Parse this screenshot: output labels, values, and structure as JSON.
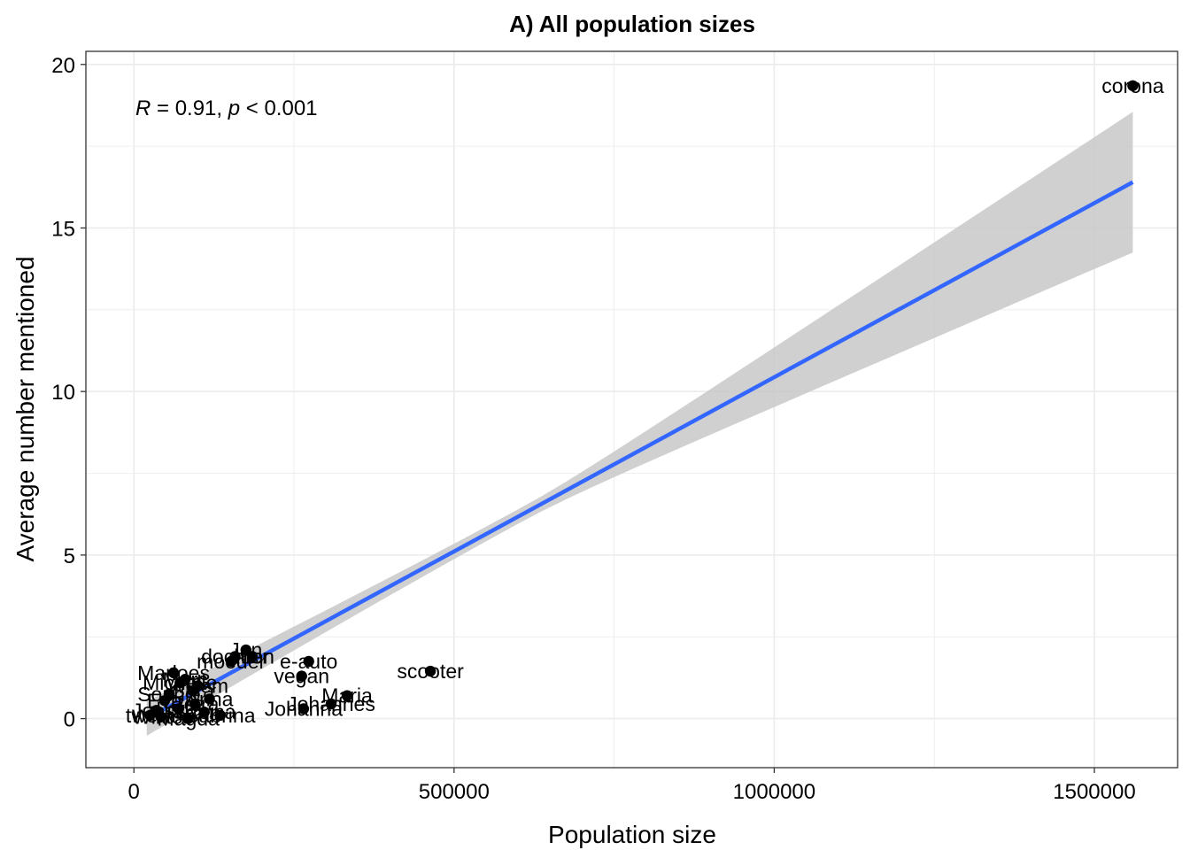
{
  "chart_data": {
    "type": "scatter",
    "title": "A) All population sizes",
    "xlabel": "Population size",
    "ylabel": "Average number mentioned",
    "xlim": [
      -75000,
      1630000
    ],
    "ylim": [
      -1.5,
      20.4
    ],
    "xticks": [
      0,
      500000,
      1000000,
      1500000
    ],
    "xtick_labels": [
      "0",
      "500000",
      "1000000",
      "1500000"
    ],
    "yticks": [
      0,
      5,
      10,
      15,
      20
    ],
    "ytick_labels": [
      "0",
      "5",
      "10",
      "15",
      "20"
    ],
    "grid": true,
    "annotation": {
      "r_symbol": "R",
      "r_text": " = 0.91, ",
      "p_symbol": "p",
      "p_text": " < 0.001"
    },
    "fit": {
      "x": [
        20000,
        1560000
      ],
      "y": [
        0.0,
        16.4
      ],
      "ci_lower": [
        -0.55,
        14.25
      ],
      "ci_upper": [
        0.5,
        18.55
      ],
      "color": "#3366FF",
      "band_color": "#c8c8c8"
    },
    "points": [
      {
        "x": 1560000,
        "y": 19.35,
        "label": "corona"
      },
      {
        "x": 463000,
        "y": 1.45,
        "label": "scooter"
      },
      {
        "x": 333000,
        "y": 0.7,
        "label": "Maria"
      },
      {
        "x": 308000,
        "y": 0.45,
        "label": "Johannes"
      },
      {
        "x": 265000,
        "y": 0.3,
        "label": "Johanna"
      },
      {
        "x": 262000,
        "y": 1.3,
        "label": "vegan"
      },
      {
        "x": 273000,
        "y": 1.75,
        "label": "e-auto"
      },
      {
        "x": 175000,
        "y": 2.1,
        "label": "Jan"
      },
      {
        "x": 158000,
        "y": 1.9,
        "label": "dochter"
      },
      {
        "x": 152000,
        "y": 1.75,
        "label": "moeder"
      },
      {
        "x": 185000,
        "y": 1.9,
        "label": "zoon"
      },
      {
        "x": 80000,
        "y": 1.2,
        "label": "Marc"
      },
      {
        "x": 62000,
        "y": 1.4,
        "label": "Marloes"
      },
      {
        "x": 72000,
        "y": 1.1,
        "label": "Michelle"
      },
      {
        "x": 100000,
        "y": 1.0,
        "label": "Willem"
      },
      {
        "x": 92000,
        "y": 0.85,
        "label": "Sara"
      },
      {
        "x": 118000,
        "y": 0.6,
        "label": "Anna"
      },
      {
        "x": 95000,
        "y": 0.45,
        "label": "Petra"
      },
      {
        "x": 55000,
        "y": 0.75,
        "label": "Sophie"
      },
      {
        "x": 48000,
        "y": 0.55,
        "label": "Eva"
      },
      {
        "x": 70000,
        "y": 0.3,
        "label": "Lotte"
      },
      {
        "x": 110000,
        "y": 0.2,
        "label": "Sabina"
      },
      {
        "x": 135000,
        "y": 0.1,
        "label": "Sabrina"
      },
      {
        "x": 35000,
        "y": 0.25,
        "label": "Joost"
      },
      {
        "x": 42000,
        "y": 0.05,
        "label": "Wiktor"
      },
      {
        "x": 85000,
        "y": 0.0,
        "label": "Magda"
      },
      {
        "x": 25000,
        "y": 0.1,
        "label": "twerk"
      }
    ]
  }
}
